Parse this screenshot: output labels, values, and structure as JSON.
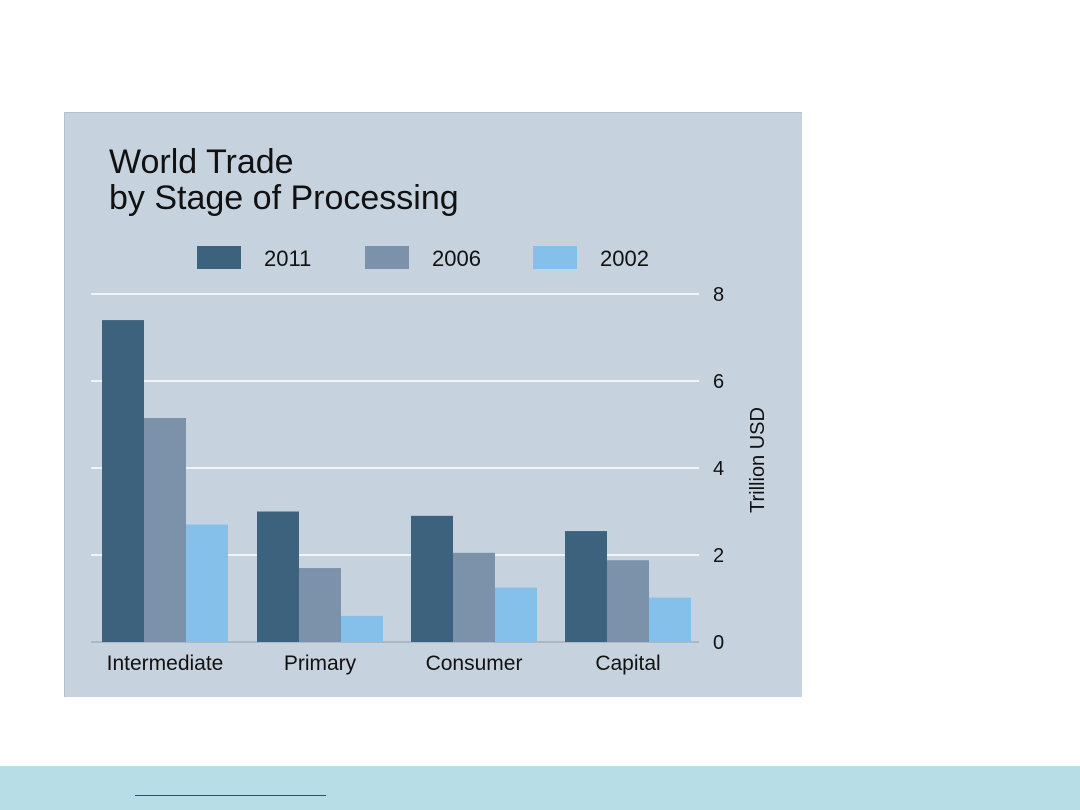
{
  "chart_data": {
    "type": "bar",
    "title": [
      "World Trade",
      "by Stage of Processing"
    ],
    "categories": [
      "Intermediate",
      "Primary",
      "Consumer",
      "Capital"
    ],
    "series": [
      {
        "name": "2011",
        "color": "#3d627e",
        "values": [
          7.4,
          3.0,
          2.9,
          2.55
        ]
      },
      {
        "name": "2006",
        "color": "#7b92aa",
        "values": [
          5.15,
          1.7,
          2.05,
          1.88
        ]
      },
      {
        "name": "2002",
        "color": "#85c0ea",
        "values": [
          2.7,
          0.6,
          1.25,
          1.02
        ]
      }
    ],
    "ylabel": "Trillion USD",
    "ylim": [
      0,
      8
    ],
    "yticks": [
      "0",
      "2",
      "4",
      "6",
      "8"
    ],
    "grid": true,
    "legend_position": "top",
    "y_axis_side": "right",
    "background_color": "#c6d2de"
  }
}
